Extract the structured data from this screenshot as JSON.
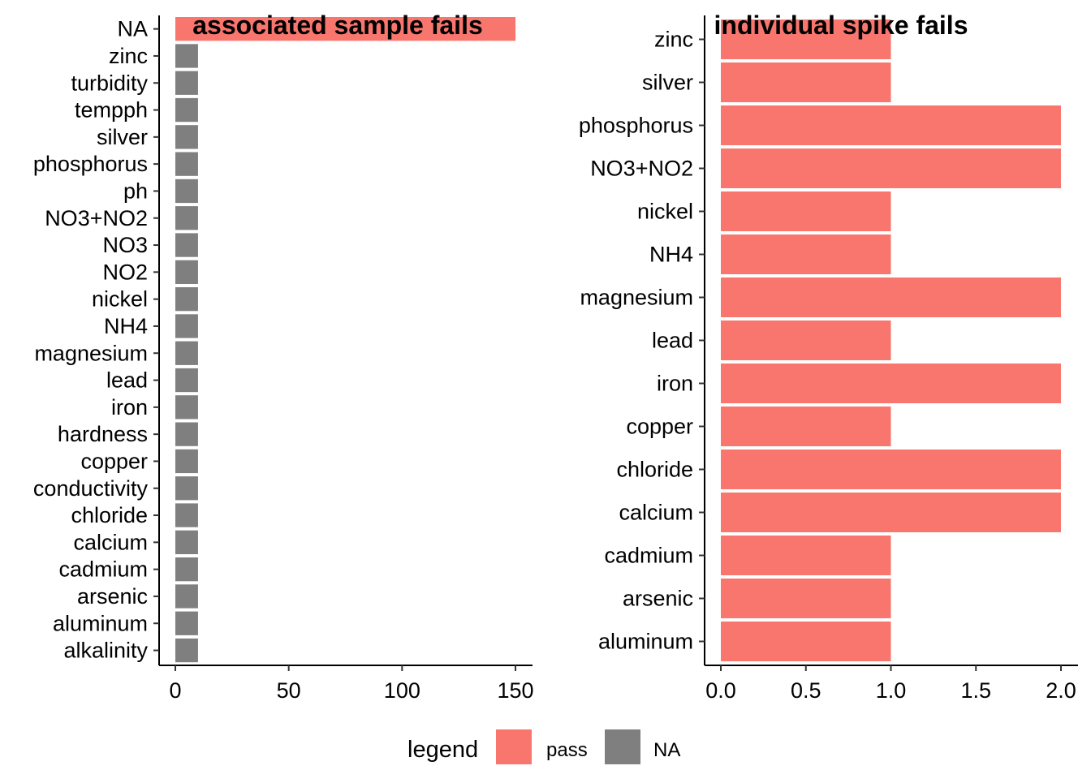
{
  "chart_data": [
    {
      "type": "bar",
      "orientation": "horizontal",
      "title": "associated sample fails",
      "xlabel": "",
      "ylabel": "",
      "xlim": [
        0,
        150
      ],
      "xticks": [
        0,
        50,
        100,
        150
      ],
      "xtick_labels": [
        "0",
        "50",
        "100",
        "150"
      ],
      "categories": [
        "NA",
        "zinc",
        "turbidity",
        "tempph",
        "silver",
        "phosphorus",
        "ph",
        "NO3+NO2",
        "NO3",
        "NO2",
        "nickel",
        "NH4",
        "magnesium",
        "lead",
        "iron",
        "hardness",
        "copper",
        "conductivity",
        "chloride",
        "calcium",
        "cadmium",
        "arsenic",
        "aluminum",
        "alkalinity"
      ],
      "values": [
        150,
        10,
        10,
        10,
        10,
        10,
        10,
        10,
        10,
        10,
        10,
        10,
        10,
        10,
        10,
        10,
        10,
        10,
        10,
        10,
        10,
        10,
        10,
        10
      ],
      "fill": [
        "pass",
        "NA",
        "NA",
        "NA",
        "NA",
        "NA",
        "NA",
        "NA",
        "NA",
        "NA",
        "NA",
        "NA",
        "NA",
        "NA",
        "NA",
        "NA",
        "NA",
        "NA",
        "NA",
        "NA",
        "NA",
        "NA",
        "NA",
        "NA"
      ]
    },
    {
      "type": "bar",
      "orientation": "horizontal",
      "title": "individual spike fails",
      "xlabel": "",
      "ylabel": "",
      "xlim": [
        0,
        2
      ],
      "xticks": [
        0,
        0.5,
        1,
        1.5,
        2
      ],
      "xtick_labels": [
        "0.0",
        "0.5",
        "1.0",
        "1.5",
        "2.0"
      ],
      "categories": [
        "zinc",
        "silver",
        "phosphorus",
        "NO3+NO2",
        "nickel",
        "NH4",
        "magnesium",
        "lead",
        "iron",
        "copper",
        "chloride",
        "calcium",
        "cadmium",
        "arsenic",
        "aluminum"
      ],
      "values": [
        1,
        1,
        2,
        2,
        1,
        1,
        2,
        1,
        2,
        1,
        2,
        2,
        1,
        1,
        1
      ],
      "fill": [
        "pass",
        "pass",
        "pass",
        "pass",
        "pass",
        "pass",
        "pass",
        "pass",
        "pass",
        "pass",
        "pass",
        "pass",
        "pass",
        "pass",
        "pass"
      ]
    }
  ],
  "legend": {
    "title": "legend",
    "items": [
      {
        "key": "pass",
        "label": "pass",
        "color": "#F8766D"
      },
      {
        "key": "NA",
        "label": "NA",
        "color": "#7F7F7F"
      }
    ]
  }
}
